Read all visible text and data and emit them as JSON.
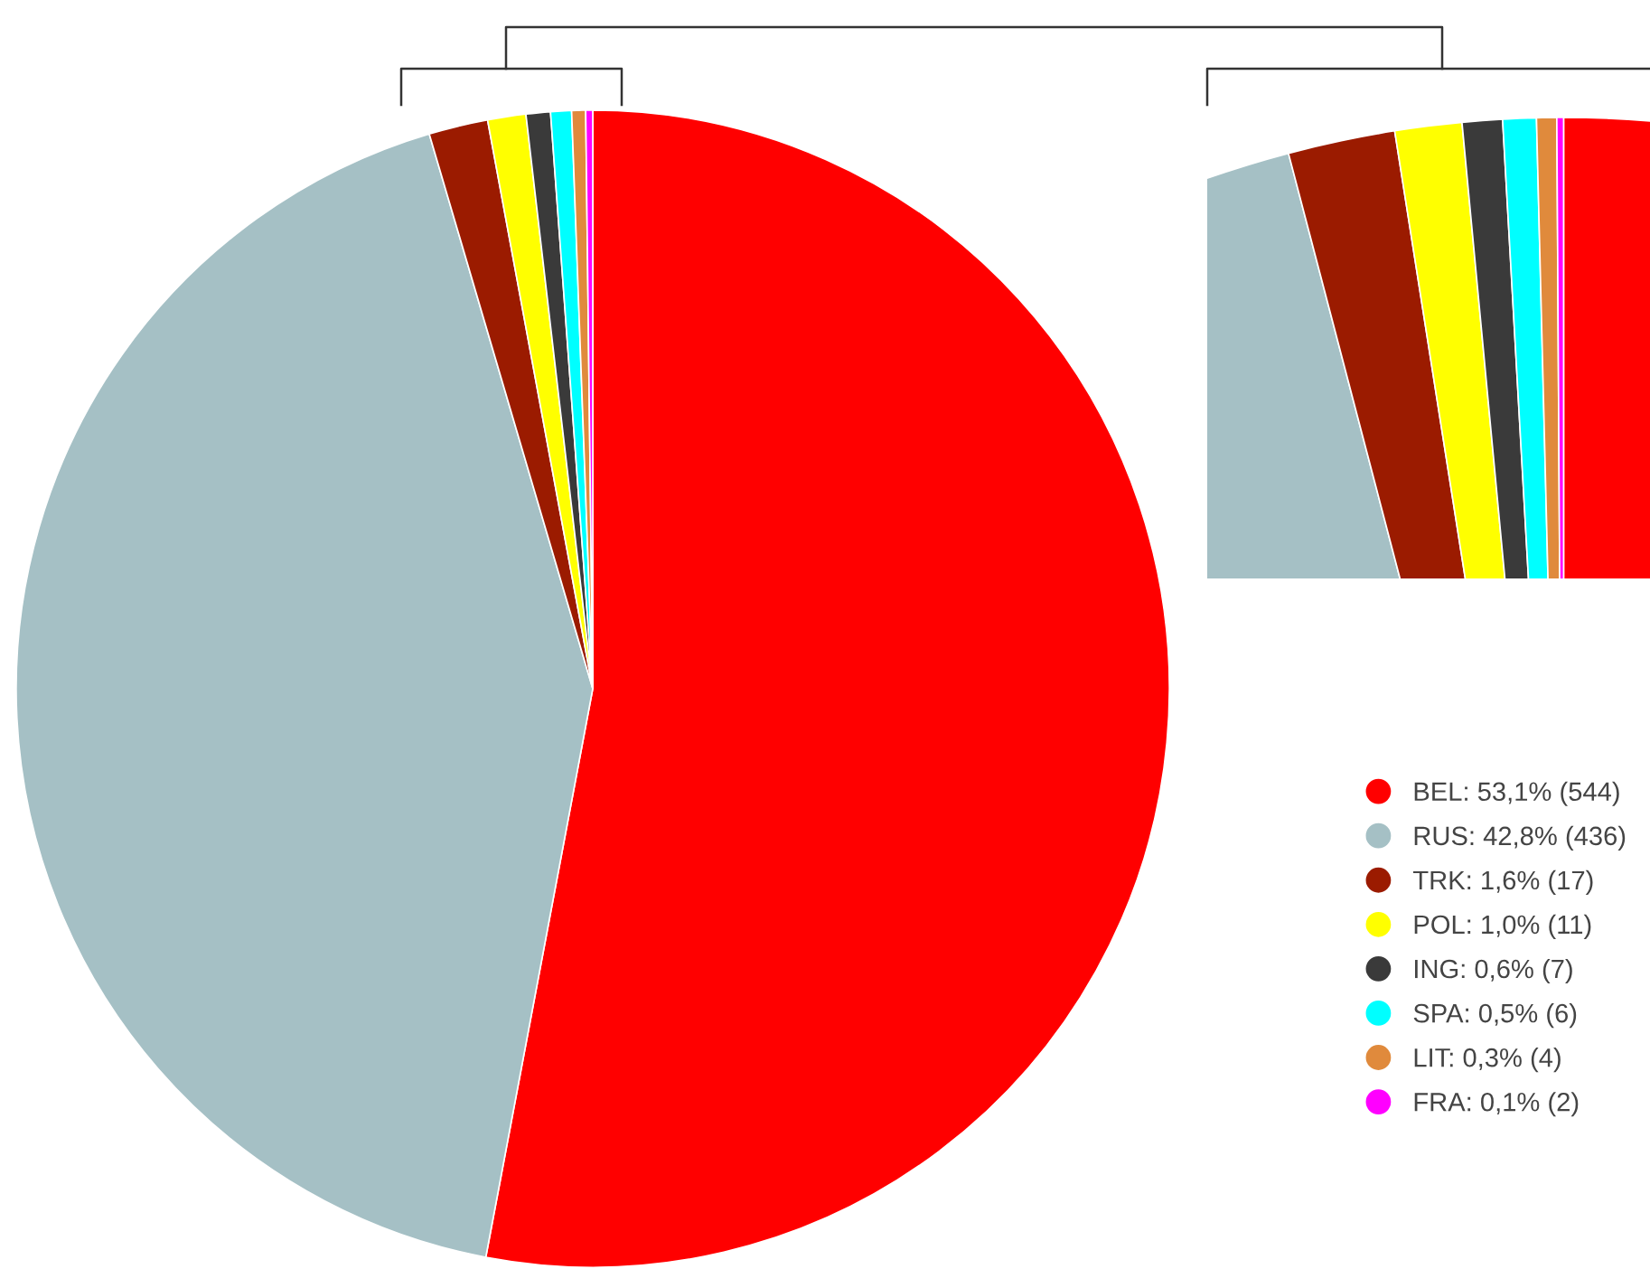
{
  "chart_data": [
    {
      "type": "pie",
      "categories": [
        "BEL: 53,1% (544)",
        "RUS: 42,8% (436)",
        "TRK: 1,6% (17)",
        "POL: 1,0% (11)",
        "ING: 0,6% (7)",
        "SPA: 0,5% (6)",
        "LIT: 0,3% (4)",
        "FRA: 0,1% (2)"
      ],
      "values": [
        544,
        436,
        17,
        11,
        7,
        6,
        4,
        2
      ],
      "colors": [
        "#ff0000",
        "#a5c0c5",
        "#9b1b00",
        "#ffff00",
        "#3a3a3a",
        "#00ffff",
        "#e08a3c",
        "#ff00ff"
      ],
      "legend": "right"
    },
    {
      "type": "pie",
      "categories": [
        null,
        null,
        null,
        null,
        null,
        null,
        null,
        null
      ],
      "values": [
        53.1,
        42.8,
        1.6,
        1.0,
        0.6,
        0.5,
        0.3,
        0.1
      ],
      "colors": [
        "#ff0000",
        "#a5c0c5",
        "#9b1b00",
        "#ffff00",
        "#3a3a3a",
        "#00ffff",
        "#e08a3c",
        "#ff00ff"
      ]
    }
  ]
}
